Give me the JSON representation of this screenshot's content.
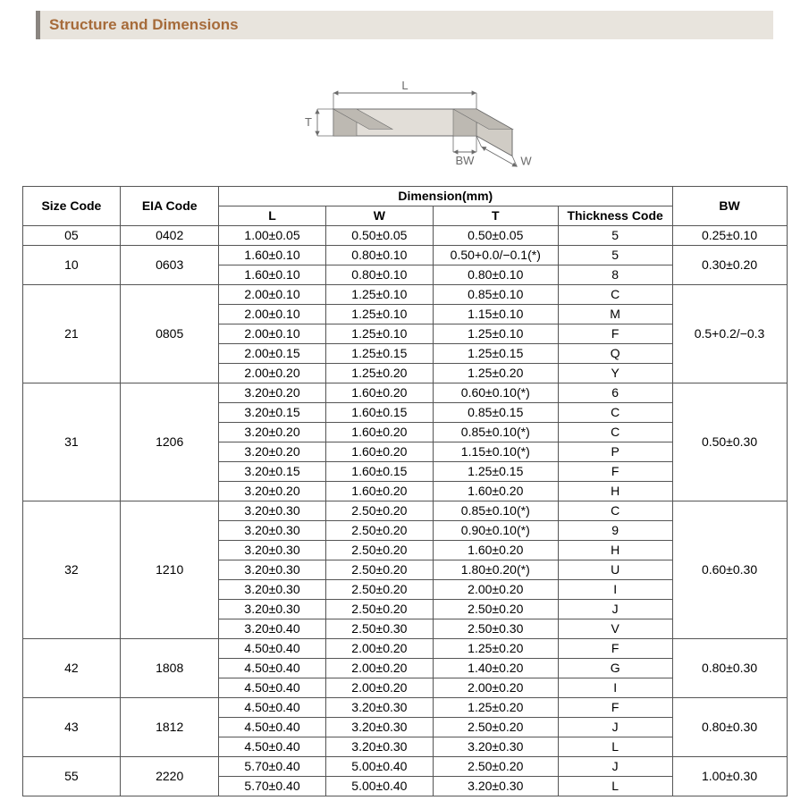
{
  "title": "Structure and Dimensions",
  "diagram": {
    "labels": {
      "L": "L",
      "W": "W",
      "T": "T",
      "BW": "BW"
    },
    "stroke": "#6b6b6b",
    "fill_top": "#f4f2ef",
    "fill_front": "#e2ded8",
    "fill_side": "#d0ccc5",
    "bw_fill": "#bdb9b2",
    "font_size": 13
  },
  "table": {
    "headers": {
      "size": "Size Code",
      "eia": "EIA Code",
      "dim": "Dimension(mm)",
      "L": "L",
      "W": "W",
      "T": "T",
      "thick": "Thickness  Code",
      "bw": "BW"
    },
    "groups": [
      {
        "size": "05",
        "eia": "0402",
        "bw": "0.25±0.10",
        "rows": [
          {
            "L": "1.00±0.05",
            "W": "0.50±0.05",
            "T": "0.50±0.05",
            "thk": "5"
          }
        ]
      },
      {
        "size": "10",
        "eia": "0603",
        "bw": "0.30±0.20",
        "rows": [
          {
            "L": "1.60±0.10",
            "W": "0.80±0.10",
            "T": "0.50+0.0/−0.1(*)",
            "thk": "5"
          },
          {
            "L": "1.60±0.10",
            "W": "0.80±0.10",
            "T": "0.80±0.10",
            "thk": "8"
          }
        ]
      },
      {
        "size": "21",
        "eia": "0805",
        "bw": "0.5+0.2/−0.3",
        "rows": [
          {
            "L": "2.00±0.10",
            "W": "1.25±0.10",
            "T": "0.85±0.10",
            "thk": "C"
          },
          {
            "L": "2.00±0.10",
            "W": "1.25±0.10",
            "T": "1.15±0.10",
            "thk": "M"
          },
          {
            "L": "2.00±0.10",
            "W": "1.25±0.10",
            "T": "1.25±0.10",
            "thk": "F"
          },
          {
            "L": "2.00±0.15",
            "W": "1.25±0.15",
            "T": "1.25±0.15",
            "thk": "Q"
          },
          {
            "L": "2.00±0.20",
            "W": "1.25±0.20",
            "T": "1.25±0.20",
            "thk": "Y"
          }
        ]
      },
      {
        "size": "31",
        "eia": "1206",
        "bw": "0.50±0.30",
        "rows": [
          {
            "L": "3.20±0.20",
            "W": "1.60±0.20",
            "T": "0.60±0.10(*)",
            "thk": "6"
          },
          {
            "L": "3.20±0.15",
            "W": "1.60±0.15",
            "T": "0.85±0.15",
            "thk": "C"
          },
          {
            "L": "3.20±0.20",
            "W": "1.60±0.20",
            "T": "0.85±0.10(*)",
            "thk": "C"
          },
          {
            "L": "3.20±0.20",
            "W": "1.60±0.20",
            "T": "1.15±0.10(*)",
            "thk": "P"
          },
          {
            "L": "3.20±0.15",
            "W": "1.60±0.15",
            "T": "1.25±0.15",
            "thk": "F"
          },
          {
            "L": "3.20±0.20",
            "W": "1.60±0.20",
            "T": "1.60±0.20",
            "thk": "H"
          }
        ]
      },
      {
        "size": "32",
        "eia": "1210",
        "bw": "0.60±0.30",
        "rows": [
          {
            "L": "3.20±0.30",
            "W": "2.50±0.20",
            "T": "0.85±0.10(*)",
            "thk": "C"
          },
          {
            "L": "3.20±0.30",
            "W": "2.50±0.20",
            "T": "0.90±0.10(*)",
            "thk": "9"
          },
          {
            "L": "3.20±0.30",
            "W": "2.50±0.20",
            "T": "1.60±0.20",
            "thk": "H"
          },
          {
            "L": "3.20±0.30",
            "W": "2.50±0.20",
            "T": "1.80±0.20(*)",
            "thk": "U"
          },
          {
            "L": "3.20±0.30",
            "W": "2.50±0.20",
            "T": "2.00±0.20",
            "thk": "I"
          },
          {
            "L": "3.20±0.30",
            "W": "2.50±0.20",
            "T": "2.50±0.20",
            "thk": "J"
          },
          {
            "L": "3.20±0.40",
            "W": "2.50±0.30",
            "T": "2.50±0.30",
            "thk": "V"
          }
        ]
      },
      {
        "size": "42",
        "eia": "1808",
        "bw": "0.80±0.30",
        "rows": [
          {
            "L": "4.50±0.40",
            "W": "2.00±0.20",
            "T": "1.25±0.20",
            "thk": "F"
          },
          {
            "L": "4.50±0.40",
            "W": "2.00±0.20",
            "T": "1.40±0.20",
            "thk": "G"
          },
          {
            "L": "4.50±0.40",
            "W": "2.00±0.20",
            "T": "2.00±0.20",
            "thk": "I"
          }
        ]
      },
      {
        "size": "43",
        "eia": "1812",
        "bw": "0.80±0.30",
        "rows": [
          {
            "L": "4.50±0.40",
            "W": "3.20±0.30",
            "T": "1.25±0.20",
            "thk": "F"
          },
          {
            "L": "4.50±0.40",
            "W": "3.20±0.30",
            "T": "2.50±0.20",
            "thk": "J"
          },
          {
            "L": "4.50±0.40",
            "W": "3.20±0.30",
            "T": "3.20±0.30",
            "thk": "L"
          }
        ]
      },
      {
        "size": "55",
        "eia": "2220",
        "bw": "1.00±0.30",
        "rows": [
          {
            "L": "5.70±0.40",
            "W": "5.00±0.40",
            "T": "2.50±0.20",
            "thk": "J"
          },
          {
            "L": "5.70±0.40",
            "W": "5.00±0.40",
            "T": "3.20±0.30",
            "thk": "L"
          }
        ]
      }
    ]
  }
}
